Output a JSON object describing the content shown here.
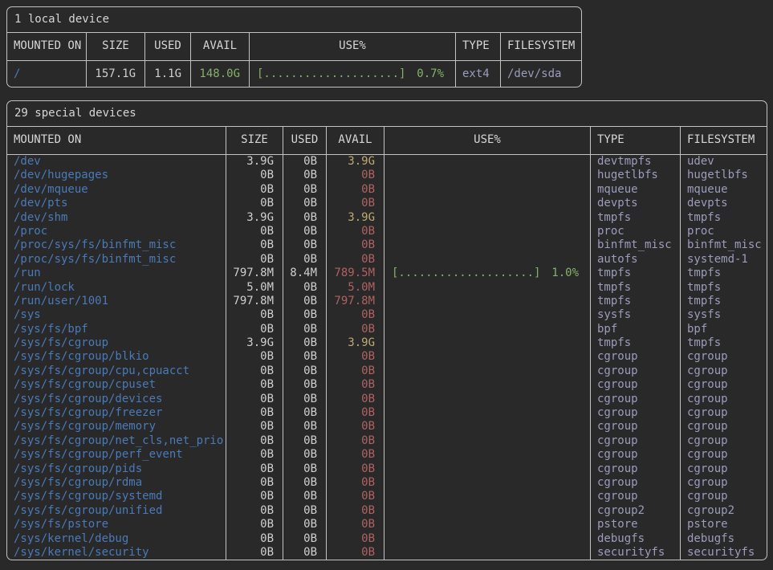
{
  "colors": {
    "background": "#292929",
    "border": "#c3c3c3",
    "header_text": "#d6d6d6",
    "value_text": "#cfcfcf",
    "mount_path": "#4a7ab8",
    "type_filesystem": "#9c9cbc",
    "avail_green": "#84b16b",
    "avail_yellow": "#c0aa72",
    "avail_red": "#b06262",
    "usage_bar_green": "#84b16b"
  },
  "local_table": {
    "title": "1 local device",
    "columns": [
      "MOUNTED ON",
      "SIZE",
      "USED",
      "AVAIL",
      "USE%",
      "TYPE",
      "FILESYSTEM"
    ],
    "rows": [
      {
        "mounted": "/",
        "size": "157.1G",
        "used": "1.1G",
        "avail": "148.0G",
        "avail_color": "green",
        "bar": "[....................]",
        "pct": "0.7%",
        "type": "ext4",
        "filesystem": "/dev/sda"
      }
    ]
  },
  "special_table": {
    "title": "29 special devices",
    "columns": [
      "MOUNTED ON",
      "SIZE",
      "USED",
      "AVAIL",
      "USE%",
      "TYPE",
      "FILESYSTEM"
    ],
    "rows": [
      {
        "mounted": "/dev",
        "size": "3.9G",
        "used": "0B",
        "avail": "3.9G",
        "avail_color": "yellow",
        "bar": "",
        "pct": "",
        "type": "devtmpfs",
        "filesystem": "udev"
      },
      {
        "mounted": "/dev/hugepages",
        "size": "0B",
        "used": "0B",
        "avail": "0B",
        "avail_color": "red",
        "bar": "",
        "pct": "",
        "type": "hugetlbfs",
        "filesystem": "hugetlbfs"
      },
      {
        "mounted": "/dev/mqueue",
        "size": "0B",
        "used": "0B",
        "avail": "0B",
        "avail_color": "red",
        "bar": "",
        "pct": "",
        "type": "mqueue",
        "filesystem": "mqueue"
      },
      {
        "mounted": "/dev/pts",
        "size": "0B",
        "used": "0B",
        "avail": "0B",
        "avail_color": "red",
        "bar": "",
        "pct": "",
        "type": "devpts",
        "filesystem": "devpts"
      },
      {
        "mounted": "/dev/shm",
        "size": "3.9G",
        "used": "0B",
        "avail": "3.9G",
        "avail_color": "yellow",
        "bar": "",
        "pct": "",
        "type": "tmpfs",
        "filesystem": "tmpfs"
      },
      {
        "mounted": "/proc",
        "size": "0B",
        "used": "0B",
        "avail": "0B",
        "avail_color": "red",
        "bar": "",
        "pct": "",
        "type": "proc",
        "filesystem": "proc"
      },
      {
        "mounted": "/proc/sys/fs/binfmt_misc",
        "size": "0B",
        "used": "0B",
        "avail": "0B",
        "avail_color": "red",
        "bar": "",
        "pct": "",
        "type": "binfmt_misc",
        "filesystem": "binfmt_misc"
      },
      {
        "mounted": "/proc/sys/fs/binfmt_misc",
        "size": "0B",
        "used": "0B",
        "avail": "0B",
        "avail_color": "red",
        "bar": "",
        "pct": "",
        "type": "autofs",
        "filesystem": "systemd-1"
      },
      {
        "mounted": "/run",
        "size": "797.8M",
        "used": "8.4M",
        "avail": "789.5M",
        "avail_color": "red",
        "bar": "[....................]",
        "pct": "1.0%",
        "type": "tmpfs",
        "filesystem": "tmpfs"
      },
      {
        "mounted": "/run/lock",
        "size": "5.0M",
        "used": "0B",
        "avail": "5.0M",
        "avail_color": "red",
        "bar": "",
        "pct": "",
        "type": "tmpfs",
        "filesystem": "tmpfs"
      },
      {
        "mounted": "/run/user/1001",
        "size": "797.8M",
        "used": "0B",
        "avail": "797.8M",
        "avail_color": "red",
        "bar": "",
        "pct": "",
        "type": "tmpfs",
        "filesystem": "tmpfs"
      },
      {
        "mounted": "/sys",
        "size": "0B",
        "used": "0B",
        "avail": "0B",
        "avail_color": "red",
        "bar": "",
        "pct": "",
        "type": "sysfs",
        "filesystem": "sysfs"
      },
      {
        "mounted": "/sys/fs/bpf",
        "size": "0B",
        "used": "0B",
        "avail": "0B",
        "avail_color": "red",
        "bar": "",
        "pct": "",
        "type": "bpf",
        "filesystem": "bpf"
      },
      {
        "mounted": "/sys/fs/cgroup",
        "size": "3.9G",
        "used": "0B",
        "avail": "3.9G",
        "avail_color": "yellow",
        "bar": "",
        "pct": "",
        "type": "tmpfs",
        "filesystem": "tmpfs"
      },
      {
        "mounted": "/sys/fs/cgroup/blkio",
        "size": "0B",
        "used": "0B",
        "avail": "0B",
        "avail_color": "red",
        "bar": "",
        "pct": "",
        "type": "cgroup",
        "filesystem": "cgroup"
      },
      {
        "mounted": "/sys/fs/cgroup/cpu,cpuacct",
        "size": "0B",
        "used": "0B",
        "avail": "0B",
        "avail_color": "red",
        "bar": "",
        "pct": "",
        "type": "cgroup",
        "filesystem": "cgroup"
      },
      {
        "mounted": "/sys/fs/cgroup/cpuset",
        "size": "0B",
        "used": "0B",
        "avail": "0B",
        "avail_color": "red",
        "bar": "",
        "pct": "",
        "type": "cgroup",
        "filesystem": "cgroup"
      },
      {
        "mounted": "/sys/fs/cgroup/devices",
        "size": "0B",
        "used": "0B",
        "avail": "0B",
        "avail_color": "red",
        "bar": "",
        "pct": "",
        "type": "cgroup",
        "filesystem": "cgroup"
      },
      {
        "mounted": "/sys/fs/cgroup/freezer",
        "size": "0B",
        "used": "0B",
        "avail": "0B",
        "avail_color": "red",
        "bar": "",
        "pct": "",
        "type": "cgroup",
        "filesystem": "cgroup"
      },
      {
        "mounted": "/sys/fs/cgroup/memory",
        "size": "0B",
        "used": "0B",
        "avail": "0B",
        "avail_color": "red",
        "bar": "",
        "pct": "",
        "type": "cgroup",
        "filesystem": "cgroup"
      },
      {
        "mounted": "/sys/fs/cgroup/net_cls,net_prio",
        "size": "0B",
        "used": "0B",
        "avail": "0B",
        "avail_color": "red",
        "bar": "",
        "pct": "",
        "type": "cgroup",
        "filesystem": "cgroup"
      },
      {
        "mounted": "/sys/fs/cgroup/perf_event",
        "size": "0B",
        "used": "0B",
        "avail": "0B",
        "avail_color": "red",
        "bar": "",
        "pct": "",
        "type": "cgroup",
        "filesystem": "cgroup"
      },
      {
        "mounted": "/sys/fs/cgroup/pids",
        "size": "0B",
        "used": "0B",
        "avail": "0B",
        "avail_color": "red",
        "bar": "",
        "pct": "",
        "type": "cgroup",
        "filesystem": "cgroup"
      },
      {
        "mounted": "/sys/fs/cgroup/rdma",
        "size": "0B",
        "used": "0B",
        "avail": "0B",
        "avail_color": "red",
        "bar": "",
        "pct": "",
        "type": "cgroup",
        "filesystem": "cgroup"
      },
      {
        "mounted": "/sys/fs/cgroup/systemd",
        "size": "0B",
        "used": "0B",
        "avail": "0B",
        "avail_color": "red",
        "bar": "",
        "pct": "",
        "type": "cgroup",
        "filesystem": "cgroup"
      },
      {
        "mounted": "/sys/fs/cgroup/unified",
        "size": "0B",
        "used": "0B",
        "avail": "0B",
        "avail_color": "red",
        "bar": "",
        "pct": "",
        "type": "cgroup2",
        "filesystem": "cgroup2"
      },
      {
        "mounted": "/sys/fs/pstore",
        "size": "0B",
        "used": "0B",
        "avail": "0B",
        "avail_color": "red",
        "bar": "",
        "pct": "",
        "type": "pstore",
        "filesystem": "pstore"
      },
      {
        "mounted": "/sys/kernel/debug",
        "size": "0B",
        "used": "0B",
        "avail": "0B",
        "avail_color": "red",
        "bar": "",
        "pct": "",
        "type": "debugfs",
        "filesystem": "debugfs"
      },
      {
        "mounted": "/sys/kernel/security",
        "size": "0B",
        "used": "0B",
        "avail": "0B",
        "avail_color": "red",
        "bar": "",
        "pct": "",
        "type": "securityfs",
        "filesystem": "securityfs"
      }
    ]
  }
}
